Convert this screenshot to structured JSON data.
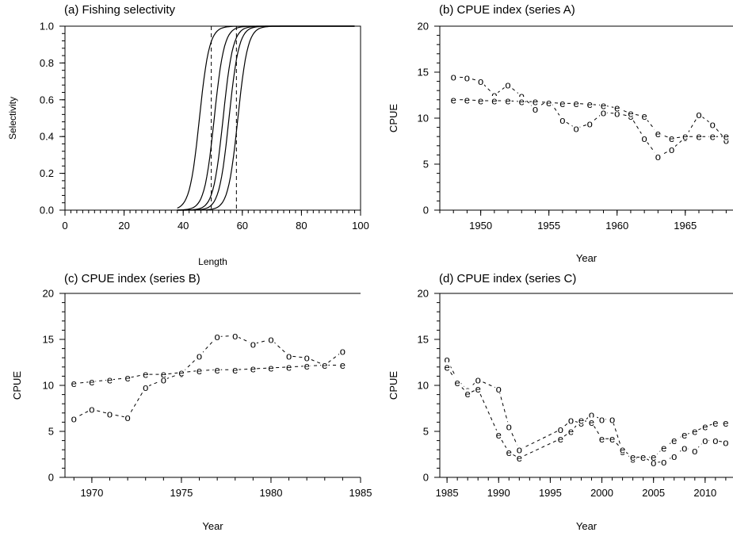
{
  "chart_data": [
    {
      "panel": "a",
      "type": "line",
      "title": "(a) Fishing selectivity",
      "xlabel": "Length",
      "ylabel": "Selectivity",
      "xlim": [
        0,
        100
      ],
      "ylim": [
        0,
        1
      ],
      "xticks": [
        0,
        20,
        40,
        60,
        80,
        100
      ],
      "yticks": [
        0.0,
        0.2,
        0.4,
        0.6,
        0.8,
        1.0
      ],
      "ytick_labels": [
        "0.0",
        "0.2",
        "0.4",
        "0.6",
        "0.8",
        "1.0"
      ],
      "grid": false,
      "curves": [
        {
          "l50": 45.5,
          "slope": 0.6,
          "x_end": 98
        },
        {
          "l50": 50.5,
          "slope": 0.6,
          "x_end": 98
        },
        {
          "l50": 53.5,
          "slope": 0.6,
          "x_end": 98
        },
        {
          "l50": 55.5,
          "slope": 0.6,
          "x_end": 98
        },
        {
          "l50": 58.5,
          "slope": 0.6,
          "x_end": 98
        }
      ],
      "vlines": [
        49.5,
        58
      ]
    },
    {
      "panel": "b",
      "type": "scatter",
      "title": "(b) CPUE index (series A)",
      "xlabel": "Year",
      "ylabel": "CPUE",
      "xlim": [
        1947,
        1968.5
      ],
      "ylim": [
        0,
        20
      ],
      "xticks": [
        1950,
        1955,
        1960,
        1965
      ],
      "yticks": [
        0,
        5,
        10,
        15,
        20
      ],
      "grid": false,
      "series": [
        {
          "symbol": "o",
          "x": [
            1948,
            1949,
            1950,
            1951,
            1952,
            1953,
            1954,
            1955,
            1956,
            1957,
            1958,
            1959,
            1960,
            1961,
            1962,
            1963,
            1964,
            1965,
            1966,
            1967,
            1968
          ],
          "values": [
            14.5,
            14.4,
            14.0,
            12.5,
            13.6,
            12.4,
            11.0,
            12.0,
            9.8,
            8.9,
            9.4,
            10.6,
            10.5,
            10.2,
            7.8,
            5.8,
            6.6,
            7.9,
            10.4,
            9.3,
            7.6
          ]
        },
        {
          "symbol": "e",
          "x": [
            1948,
            1949,
            1950,
            1951,
            1952,
            1953,
            1954,
            1955,
            1956,
            1957,
            1958,
            1959,
            1960,
            1961,
            1962,
            1963,
            1964,
            1965,
            1966,
            1967,
            1968
          ],
          "values": [
            12.0,
            12.0,
            11.9,
            11.9,
            11.9,
            11.8,
            11.8,
            11.7,
            11.6,
            11.6,
            11.5,
            11.4,
            11.1,
            10.5,
            10.2,
            8.3,
            7.8,
            8.0,
            8.0,
            8.0,
            8.0
          ]
        }
      ]
    },
    {
      "panel": "c",
      "type": "scatter",
      "title": "(c) CPUE index (series B)",
      "xlabel": "Year",
      "ylabel": "CPUE",
      "xlim": [
        1968.5,
        1985
      ],
      "ylim": [
        0,
        20
      ],
      "xticks": [
        1970,
        1975,
        1980,
        1985
      ],
      "yticks": [
        0,
        5,
        10,
        15,
        20
      ],
      "grid": false,
      "series": [
        {
          "symbol": "o",
          "x": [
            1969,
            1970,
            1971,
            1972,
            1973,
            1974,
            1975,
            1976,
            1977,
            1978,
            1979,
            1980,
            1981,
            1982,
            1983,
            1984
          ],
          "values": [
            6.4,
            7.4,
            6.9,
            6.5,
            9.8,
            10.6,
            11.3,
            13.2,
            15.3,
            15.4,
            14.5,
            15.0,
            13.2,
            13.0,
            12.2,
            13.7
          ]
        },
        {
          "symbol": "e",
          "x": [
            1969,
            1970,
            1971,
            1972,
            1973,
            1974,
            1975,
            1976,
            1977,
            1978,
            1979,
            1980,
            1981,
            1982,
            1983,
            1984
          ],
          "values": [
            10.2,
            10.4,
            10.6,
            10.8,
            11.2,
            11.2,
            11.4,
            11.6,
            11.7,
            11.7,
            11.8,
            11.9,
            12.0,
            12.1,
            12.2,
            12.2
          ]
        }
      ]
    },
    {
      "panel": "d",
      "type": "scatter",
      "title": "(d) CPUE index (series C)",
      "xlabel": "Year",
      "ylabel": "CPUE",
      "xlim": [
        1984.3,
        2012.7
      ],
      "ylim": [
        0,
        20
      ],
      "xticks": [
        1985,
        1990,
        1995,
        2000,
        2005,
        2010
      ],
      "yticks": [
        0,
        5,
        10,
        15,
        20
      ],
      "grid": false,
      "series": [
        {
          "symbol": "o",
          "x": [
            1985,
            1986,
            1987,
            1988,
            1990,
            1991,
            1992,
            1996,
            1997,
            1998,
            1999,
            2000,
            2001,
            2002,
            2003,
            2004,
            2005,
            2006,
            2007,
            2008,
            2009,
            2010,
            2011,
            2012
          ],
          "values": [
            12.8,
            10.6,
            9.5,
            10.6,
            9.6,
            5.5,
            3.0,
            5.2,
            6.2,
            5.9,
            6.8,
            6.3,
            6.3,
            2.8,
            2.0,
            2.2,
            1.6,
            1.7,
            2.3,
            3.2,
            2.9,
            4.0,
            4.0,
            3.8
          ]
        },
        {
          "symbol": "e",
          "x": [
            1985,
            1986,
            1987,
            1988,
            1990,
            1991,
            1992,
            1996,
            1997,
            1998,
            1999,
            2000,
            2001,
            2002,
            2003,
            2004,
            2005,
            2006,
            2007,
            2008,
            2009,
            2010,
            2011,
            2012
          ],
          "values": [
            12.0,
            10.3,
            9.1,
            9.6,
            4.6,
            2.7,
            2.1,
            4.2,
            5.0,
            6.2,
            6.0,
            4.2,
            4.2,
            3.0,
            2.2,
            2.2,
            2.2,
            3.2,
            4.0,
            4.6,
            5.0,
            5.5,
            5.9,
            5.9
          ]
        }
      ],
      "connections": [
        [
          0,
          1
        ],
        [
          1,
          2
        ],
        [
          2,
          3
        ],
        [
          3,
          4
        ],
        [
          4,
          5
        ],
        [
          5,
          6
        ],
        [
          6,
          7
        ],
        [
          7,
          8
        ],
        [
          8,
          9
        ],
        [
          9,
          10
        ],
        [
          10,
          11
        ],
        [
          11,
          12
        ],
        [
          12,
          13
        ],
        [
          13,
          14
        ],
        [
          14,
          15
        ],
        [
          15,
          16
        ],
        [
          16,
          17
        ],
        [
          17,
          18
        ],
        [
          18,
          19
        ],
        [
          19,
          20
        ],
        [
          20,
          21
        ],
        [
          21,
          22
        ],
        [
          22,
          23
        ]
      ]
    }
  ]
}
